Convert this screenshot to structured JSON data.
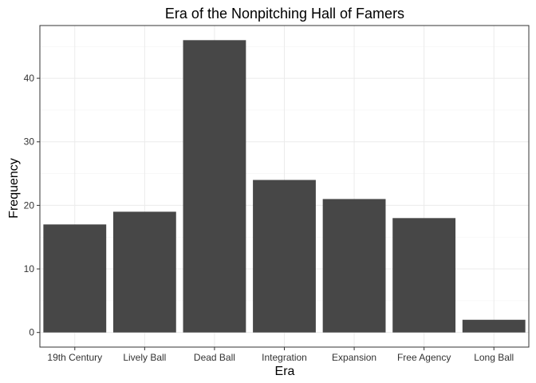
{
  "chart_data": {
    "type": "bar",
    "title": "Era of the Nonpitching Hall of Famers",
    "xlabel": "Era",
    "ylabel": "Frequency",
    "categories": [
      "19th Century",
      "Lively Ball",
      "Dead Ball",
      "Integration",
      "Expansion",
      "Free Agency",
      "Long Ball"
    ],
    "values": [
      17,
      19,
      46,
      24,
      21,
      18,
      2
    ],
    "yticks": [
      0,
      10,
      20,
      30,
      40
    ],
    "ylim": [
      -2.3,
      48.3
    ],
    "grid": true,
    "bar_color": "#474747"
  }
}
